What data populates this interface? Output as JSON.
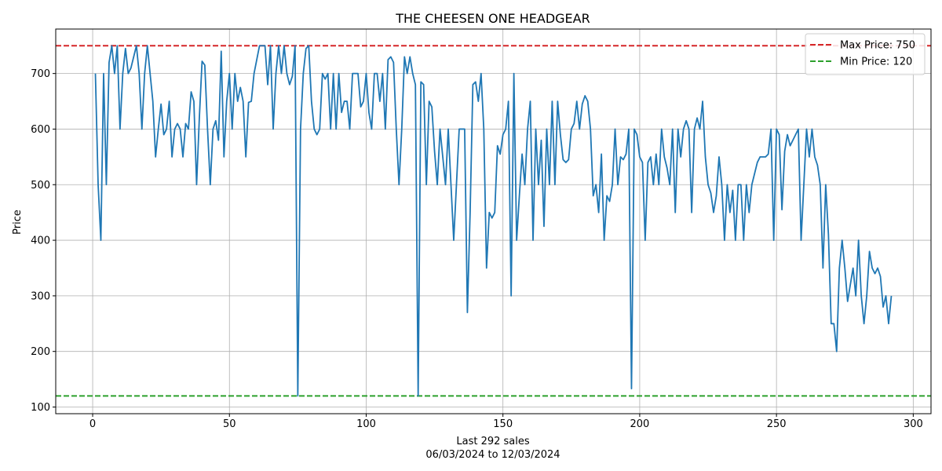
{
  "chart_data": {
    "type": "line",
    "title": "THE CHEESEN ONE HEADGEAR",
    "xlabel": "Last 292 sales",
    "xlabel_sub": "06/03/2024 to 12/03/2024",
    "ylabel": "Price",
    "xlim": [
      -13.5,
      306.5
    ],
    "ylim": [
      88,
      780
    ],
    "xticks": [
      0,
      50,
      100,
      150,
      200,
      250,
      300
    ],
    "yticks": [
      100,
      200,
      300,
      400,
      500,
      600,
      700
    ],
    "grid": true,
    "legend_position": "top-right",
    "reference_lines": [
      {
        "name": "Max Price: 750",
        "value": 750,
        "color": "#d62728",
        "style": "dashed"
      },
      {
        "name": "Min Price: 120",
        "value": 120,
        "color": "#2ca02c",
        "style": "dashed"
      }
    ],
    "series": [
      {
        "color": "#1f77b4",
        "values": [
          700,
          500,
          400,
          700,
          500,
          720,
          750,
          700,
          750,
          600,
          700,
          745,
          700,
          710,
          730,
          750,
          700,
          600,
          700,
          750,
          700,
          650,
          550,
          600,
          645,
          590,
          600,
          650,
          550,
          600,
          610,
          600,
          550,
          610,
          600,
          667,
          650,
          500,
          620,
          722,
          715,
          600,
          500,
          600,
          615,
          580,
          740,
          550,
          650,
          700,
          600,
          700,
          650,
          675,
          650,
          550,
          648,
          650,
          700,
          725,
          750,
          750,
          750,
          680,
          750,
          600,
          700,
          750,
          700,
          750,
          700,
          680,
          695,
          750,
          120,
          600,
          700,
          745,
          750,
          650,
          600,
          590,
          600,
          700,
          690,
          700,
          600,
          700,
          600,
          700,
          630,
          650,
          650,
          600,
          700,
          700,
          700,
          640,
          650,
          700,
          630,
          600,
          700,
          700,
          650,
          700,
          600,
          725,
          730,
          720,
          600,
          500,
          600,
          730,
          700,
          730,
          700,
          680,
          120,
          685,
          680,
          500,
          650,
          640,
          560,
          500,
          600,
          550,
          500,
          600,
          500,
          400,
          500,
          600,
          600,
          600,
          270,
          450,
          680,
          685,
          650,
          700,
          600,
          350,
          450,
          440,
          450,
          570,
          555,
          590,
          600,
          650,
          300,
          700,
          400,
          480,
          555,
          500,
          600,
          650,
          400,
          600,
          500,
          580,
          425,
          600,
          500,
          650,
          500,
          650,
          590,
          545,
          540,
          545,
          600,
          610,
          650,
          600,
          645,
          660,
          650,
          600,
          480,
          500,
          450,
          555,
          400,
          480,
          470,
          500,
          600,
          500,
          550,
          545,
          555,
          600,
          133,
          600,
          590,
          550,
          540,
          400,
          540,
          550,
          500,
          555,
          500,
          600,
          550,
          530,
          500,
          600,
          450,
          600,
          550,
          600,
          615,
          600,
          450,
          600,
          620,
          600,
          650,
          550,
          500,
          485,
          450,
          480,
          550,
          500,
          400,
          500,
          450,
          490,
          400,
          500,
          500,
          400,
          500,
          450,
          500,
          520,
          540,
          550,
          550,
          550,
          555,
          600,
          400,
          600,
          590,
          455,
          560,
          590,
          570,
          580,
          590,
          600,
          400,
          500,
          600,
          550,
          600,
          550,
          535,
          500,
          350,
          500,
          410,
          250,
          250,
          200,
          350,
          400,
          350,
          290,
          320,
          350,
          300,
          400,
          300,
          250,
          300,
          380,
          350,
          340,
          350,
          335,
          280,
          300,
          250,
          300
        ]
      }
    ]
  }
}
